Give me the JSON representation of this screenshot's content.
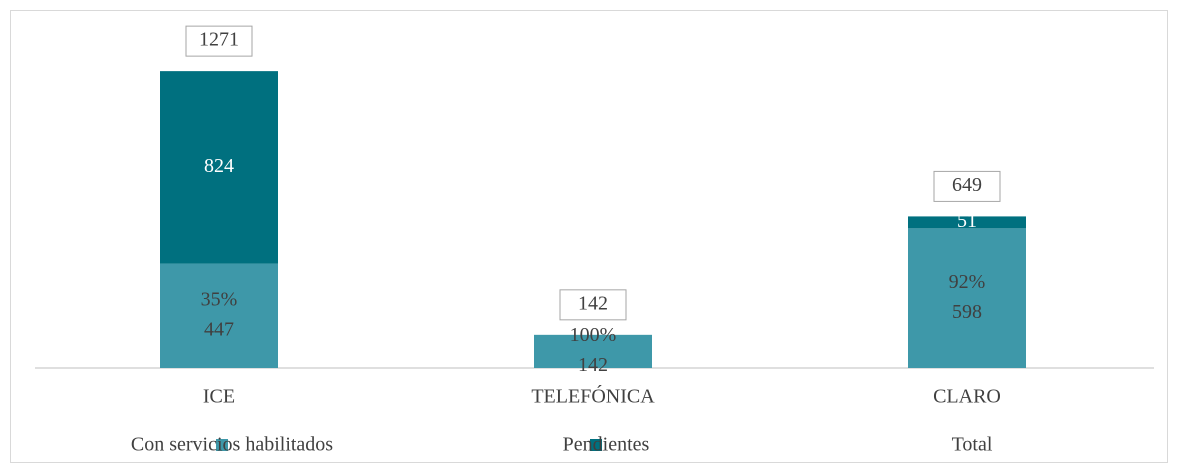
{
  "chart_data": {
    "type": "stacked_bar",
    "categories": [
      "ICE",
      "TELEFÓNICA",
      "CLARO"
    ],
    "series": [
      {
        "name": "Con servicios habilitados",
        "color": "#3e98a9",
        "values": [
          447,
          142,
          598
        ],
        "percent_labels": [
          "35%",
          "100%",
          "92%"
        ]
      },
      {
        "name": "Pendientes",
        "color": "#00707f",
        "values": [
          824,
          null,
          51
        ]
      },
      {
        "name": "Total",
        "values": [
          1271,
          142,
          649
        ]
      }
    ],
    "ylim": [
      0,
      1400
    ]
  }
}
